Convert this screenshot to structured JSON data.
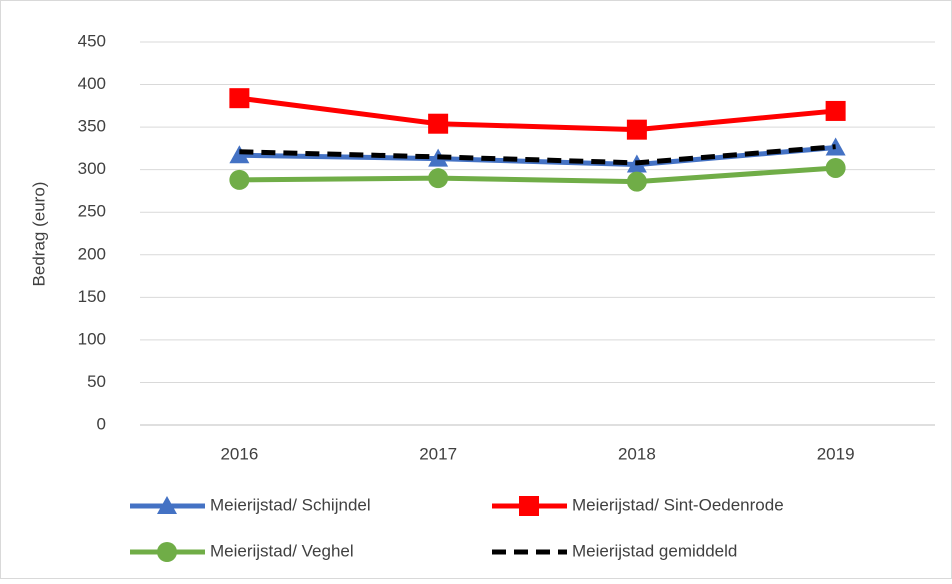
{
  "chart_data": {
    "type": "line",
    "y_label": "Bedrag (euro)",
    "categories": [
      "2016",
      "2017",
      "2018",
      "2019"
    ],
    "series": [
      {
        "name": "Meierijstad/ Schijndel",
        "color": "#4472c4",
        "marker": "triangle",
        "dashed": false,
        "values": [
          317,
          313,
          306,
          326
        ]
      },
      {
        "name": "Meierijstad/ Sint-Oedenrode",
        "color": "#ff0000",
        "marker": "square",
        "dashed": false,
        "values": [
          384,
          354,
          347,
          369
        ]
      },
      {
        "name": "Meierijstad/ Veghel",
        "color": "#70ad47",
        "marker": "circle",
        "dashed": false,
        "values": [
          288,
          290,
          286,
          302
        ]
      },
      {
        "name": "Meierijstad gemiddeld",
        "color": "#000000",
        "marker": "none",
        "dashed": true,
        "values": [
          321,
          315,
          308,
          327
        ]
      }
    ],
    "ylim": [
      0,
      450
    ],
    "yticks": [
      0,
      50,
      100,
      150,
      200,
      250,
      300,
      350,
      400,
      450
    ],
    "grid": true,
    "legend": "bottom"
  }
}
